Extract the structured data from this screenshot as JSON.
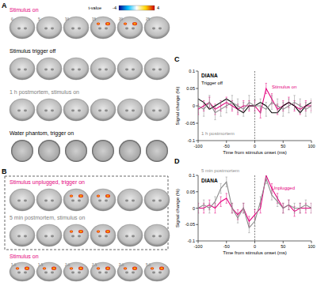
{
  "panels": {
    "A": {
      "label": "A",
      "colorbar": {
        "label": "t-value",
        "range": [
          -4,
          4
        ],
        "ticks": [
          -4,
          4
        ]
      },
      "rows": [
        {
          "title": "Stimulus on",
          "color": "#e5007e",
          "type": "brain",
          "slices": 6,
          "slice_labels": [
            "0",
            "5",
            "10",
            "15",
            "20",
            "25"
          ],
          "active_slices": [
            3,
            4
          ]
        },
        {
          "title": "Stimulus trigger off",
          "color": "#000000",
          "type": "brain",
          "slices": 6,
          "active_slices": []
        },
        {
          "title": "1 h postmortem, stimulus on",
          "color": "#808080",
          "type": "brain",
          "slices": 6,
          "active_slices": []
        },
        {
          "title": "Water phantom, trigger on",
          "color": "#000000",
          "type": "phantom",
          "slices": 6,
          "active_slices": []
        }
      ]
    },
    "B": {
      "label": "B",
      "boxed_rows": [
        {
          "title": "Stimulus unplugged, trigger on",
          "color": "#e5007e",
          "type": "brain",
          "slices": 6,
          "active_slices": [
            2,
            3
          ]
        },
        {
          "title": "5 min postmortem, stimulus on",
          "color": "#808080",
          "type": "brain",
          "slices": 6,
          "active_slices": [
            2,
            3
          ]
        }
      ],
      "rows": [
        {
          "title": "Stimulus on",
          "color": "#e5007e",
          "type": "brain",
          "slices": 6,
          "slice_labels": [
            "1.0",
            "1.5",
            "2.0",
            "2.5",
            "3.0",
            "5.0"
          ],
          "active_slices": [
            0,
            1,
            2,
            3,
            4,
            5
          ]
        }
      ]
    }
  },
  "chart_data": [
    {
      "type": "line",
      "panel_label": "C",
      "title": "DIANA",
      "x_label": "Time from stimulus onset (ms)",
      "y_label": "Signal change (%)",
      "x": [
        -100,
        -90,
        -80,
        -70,
        -60,
        -50,
        -40,
        -30,
        -20,
        -10,
        0,
        10,
        20,
        30,
        40,
        50,
        60,
        70,
        80,
        90,
        100
      ],
      "xlim": [
        -100,
        100
      ],
      "xticks": [
        -100,
        -50,
        0,
        50,
        100
      ],
      "ylim": [
        -0.1,
        0.1
      ],
      "yticks": [
        -0.1,
        -0.05,
        0,
        0.05,
        0.1
      ],
      "series": [
        {
          "name": "Stimulus on",
          "color": "#e5007e",
          "values": [
            -0.01,
            0.0,
            0.01,
            -0.01,
            0.0,
            0.01,
            0.0,
            -0.01,
            0.0,
            0.0,
            0.0,
            -0.02,
            0.05,
            0.02,
            -0.01,
            0.0,
            0.01,
            0.0,
            -0.01,
            0.0,
            0.0
          ],
          "errors": [
            0.015,
            0.015,
            0.015,
            0.015,
            0.015,
            0.015,
            0.015,
            0.015,
            0.015,
            0.015,
            0.015,
            0.015,
            0.015,
            0.015,
            0.015,
            0.015,
            0.015,
            0.015,
            0.015,
            0.015,
            0.015
          ]
        },
        {
          "name": "Trigger off",
          "color": "#000000",
          "values": [
            0.02,
            0.01,
            -0.01,
            0.0,
            0.01,
            0.02,
            0.01,
            -0.01,
            -0.02,
            0.0,
            0.0,
            0.01,
            0.0,
            -0.02,
            -0.02,
            0.0,
            0.01,
            0.0,
            -0.02,
            0.0,
            0.01
          ]
        },
        {
          "name": "1 h postmortem",
          "color": "#8c8c8c",
          "values": [
            0.0,
            -0.01,
            0.01,
            -0.02,
            -0.01,
            0.0,
            0.01,
            0.0,
            -0.01,
            0.01,
            0.0,
            0.0,
            -0.01,
            0.01,
            0.0,
            -0.01,
            0.0,
            0.01,
            0.0,
            -0.01,
            0.0
          ],
          "errors": [
            0.02,
            0.02,
            0.02,
            0.02,
            0.02,
            0.02,
            0.02,
            0.02,
            0.02,
            0.02,
            0.02,
            0.02,
            0.02,
            0.02,
            0.02,
            0.02,
            0.02,
            0.02,
            0.02,
            0.02,
            0.02
          ]
        }
      ]
    },
    {
      "type": "line",
      "panel_label": "D",
      "title": "DIANA",
      "x_label": "Time from stimulus onset (ms)",
      "y_label": "Signal change (%)",
      "x": [
        -100,
        -90,
        -80,
        -70,
        -60,
        -50,
        -40,
        -30,
        -20,
        -10,
        0,
        10,
        20,
        30,
        40,
        50,
        60,
        70,
        80,
        90,
        100
      ],
      "xlim": [
        -100,
        100
      ],
      "xticks": [
        -100,
        -50,
        0,
        50,
        100
      ],
      "ylim": [
        -0.1,
        0.1
      ],
      "yticks": [
        -0.1,
        -0.05,
        0,
        0.05,
        0.1
      ],
      "series": [
        {
          "name": "Unplugged",
          "color": "#e5007e",
          "values": [
            0.0,
            0.0,
            0.01,
            0.0,
            0.02,
            0.03,
            0.0,
            -0.02,
            0.0,
            -0.04,
            -0.02,
            0.0,
            0.1,
            0.06,
            0.03,
            0.0,
            0.01,
            -0.01,
            0.0,
            0.0,
            0.0
          ],
          "errors": [
            0.015,
            0.015,
            0.015,
            0.015,
            0.015,
            0.015,
            0.015,
            0.015,
            0.015,
            0.015,
            0.015,
            0.015,
            0.015,
            0.015,
            0.015,
            0.015,
            0.015,
            0.015,
            0.015,
            0.015,
            0.015
          ]
        },
        {
          "name": "5 min postmortem",
          "color": "#8c8c8c",
          "values": [
            0.0,
            0.01,
            0.0,
            0.02,
            0.06,
            0.08,
            0.0,
            -0.03,
            0.0,
            -0.06,
            -0.04,
            0.02,
            0.09,
            0.04,
            0.02,
            0.0,
            0.01,
            0.0,
            0.0,
            0.01,
            0.0
          ],
          "errors": [
            0.015,
            0.015,
            0.015,
            0.015,
            0.015,
            0.015,
            0.015,
            0.015,
            0.015,
            0.015,
            0.015,
            0.015,
            0.015,
            0.015,
            0.015,
            0.015,
            0.015,
            0.015,
            0.015,
            0.015,
            0.015
          ]
        }
      ]
    }
  ]
}
